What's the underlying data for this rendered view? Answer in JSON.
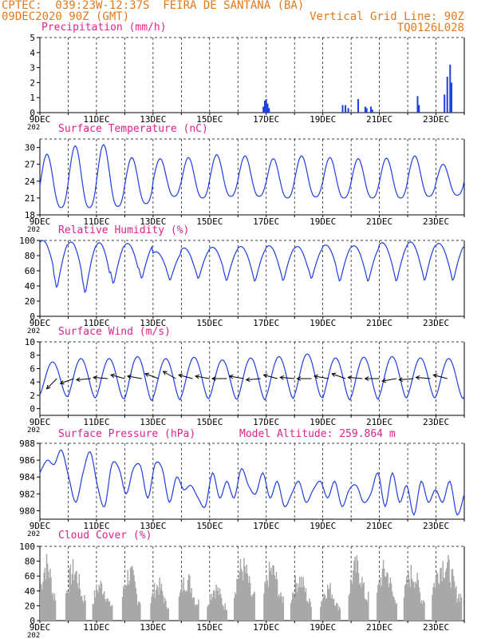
{
  "header": {
    "line1_left": "CPTEC:  039:23W-12:37S  FEIRA DE SANTANA (BA)",
    "line2_left": "09DEC2020 90Z (GMT)",
    "line1_right": "Vertical Grid Line: 90Z",
    "line2_right": "TQ0126L028"
  },
  "colors": {
    "header": "#e07a1e",
    "title": "#e0228a",
    "series": "#1f3fe0",
    "wind_arrow": "#000000",
    "cloud": "#a8a8a8"
  },
  "x_labels": [
    "9DEC",
    "11DEC",
    "13DEC",
    "15DEC",
    "17DEC",
    "19DEC",
    "21DEC",
    "23DEC"
  ],
  "cut_year_label": "202",
  "chart_data": [
    {
      "id": "precip",
      "type": "bar",
      "title": "Precipitation (mm/h)",
      "ylim": [
        0,
        5
      ],
      "yticks": [
        "0",
        "1",
        "2",
        "3",
        "4",
        "5"
      ],
      "x_unit": "days since 9DEC 09Z",
      "x": [
        7.9,
        7.95,
        8.0,
        8.05,
        8.1,
        10.7,
        10.8,
        10.9,
        11.25,
        11.5,
        11.55,
        11.7,
        11.75,
        13.35,
        13.4,
        14.3,
        14.4,
        14.5,
        14.55
      ],
      "values": [
        0.4,
        0.8,
        0.9,
        0.6,
        0.3,
        0.5,
        0.5,
        0.3,
        0.9,
        0.4,
        0.3,
        0.4,
        0.2,
        1.1,
        0.5,
        1.2,
        2.4,
        3.2,
        2.0
      ]
    },
    {
      "id": "temp",
      "type": "line",
      "title": "Surface Temperature (nC)",
      "ylim": [
        18,
        31.5
      ],
      "yticks": [
        "18",
        "21",
        "24",
        "27",
        "30"
      ],
      "peaks": [
        28.8,
        30.3,
        30.5,
        28.2,
        28.0,
        28.2,
        28.7,
        28.5,
        28.0,
        28.5,
        28.2,
        28.0,
        28.1,
        28.5,
        27.0
      ],
      "troughs": [
        19.3,
        19.3,
        19.5,
        20.0,
        21.3,
        21.0,
        21.3,
        21.3,
        21.0,
        21.2,
        21.0,
        21.0,
        21.0,
        21.3,
        21.5,
        22.2
      ]
    },
    {
      "id": "rh",
      "type": "line",
      "title": "Relative Humidity (%)",
      "ylim": [
        0,
        100
      ],
      "yticks": [
        "0",
        "20",
        "40",
        "60",
        "80",
        "100"
      ],
      "peaks": [
        100,
        98,
        97,
        96,
        85,
        90,
        91,
        92,
        93,
        92,
        94,
        93,
        97,
        98,
        96,
        94
      ],
      "troughs": [
        44,
        35,
        28,
        41,
        48,
        46,
        48,
        45,
        44,
        45,
        48,
        44,
        44,
        44,
        45
      ]
    },
    {
      "id": "wind",
      "type": "line",
      "title": "Surface Wind (m/s)",
      "ylim": [
        -1,
        10
      ],
      "yticks": [
        "0",
        "2",
        "4",
        "6",
        "8",
        "10"
      ],
      "peaks": [
        7.0,
        7.5,
        7.5,
        7.8,
        7.5,
        7.7,
        7.3,
        7.6,
        7.8,
        8.2,
        7.6,
        7.7,
        7.8,
        7.6,
        7.5
      ],
      "troughs": [
        1.8,
        1.6,
        1.5,
        1.2,
        1.3,
        1.5,
        1.4,
        1.3,
        1.5,
        1.7,
        1.3,
        1.4,
        1.6,
        1.6,
        1.5
      ],
      "arrow_angles_deg": [
        225,
        200,
        185,
        175,
        165,
        170,
        160,
        150,
        165,
        170,
        180,
        170,
        185,
        165,
        175,
        180,
        170,
        160,
        175,
        180,
        190,
        185,
        175,
        165
      ]
    },
    {
      "id": "pres",
      "type": "line",
      "title": "Surface Pressure (hPa)",
      "annotation": "Model Altitude: 259.864 m",
      "ylim": [
        979,
        988
      ],
      "yticks": [
        "980",
        "982",
        "984",
        "986",
        "988"
      ],
      "values": [
        984.5,
        986.0,
        985.5,
        987.2,
        984.0,
        981.0,
        984.5,
        987.0,
        983.0,
        980.5,
        985.5,
        985.0,
        982.0,
        985.0,
        985.3,
        981.5,
        985.5,
        985.0,
        981.0,
        984.0,
        982.5,
        983.0,
        981.5,
        980.5,
        984.5,
        981.5,
        983.5,
        981.5,
        985.0,
        983.0,
        982.0,
        984.5,
        981.5,
        983.5,
        980.5,
        982.0,
        983.5,
        981.0,
        982.5,
        983.5,
        981.5,
        983.5,
        980.5,
        982.5,
        983.0,
        981.0,
        982.0,
        984.5,
        980.5,
        984.5,
        981.0,
        983.0,
        979.5,
        983.5,
        981.0,
        982.5,
        981.0,
        983.5,
        979.5,
        982.0
      ]
    },
    {
      "id": "cloud",
      "type": "bar",
      "title": "Cloud Cover (%)",
      "ylim": [
        0,
        100
      ],
      "yticks": [
        "0",
        "20",
        "40",
        "60",
        "80",
        "100"
      ],
      "periods": [
        [
          0.0,
          0.55,
          95
        ],
        [
          0.9,
          1.6,
          85
        ],
        [
          1.85,
          2.55,
          60
        ],
        [
          2.9,
          3.55,
          80
        ],
        [
          3.9,
          4.55,
          60
        ],
        [
          4.9,
          5.6,
          70
        ],
        [
          5.9,
          6.6,
          55
        ],
        [
          6.85,
          7.6,
          90
        ],
        [
          7.9,
          8.6,
          85
        ],
        [
          8.85,
          9.6,
          70
        ],
        [
          9.9,
          10.6,
          55
        ],
        [
          10.9,
          11.6,
          90
        ],
        [
          11.9,
          12.6,
          85
        ],
        [
          12.85,
          13.6,
          80
        ],
        [
          13.85,
          14.9,
          97
        ]
      ]
    }
  ]
}
